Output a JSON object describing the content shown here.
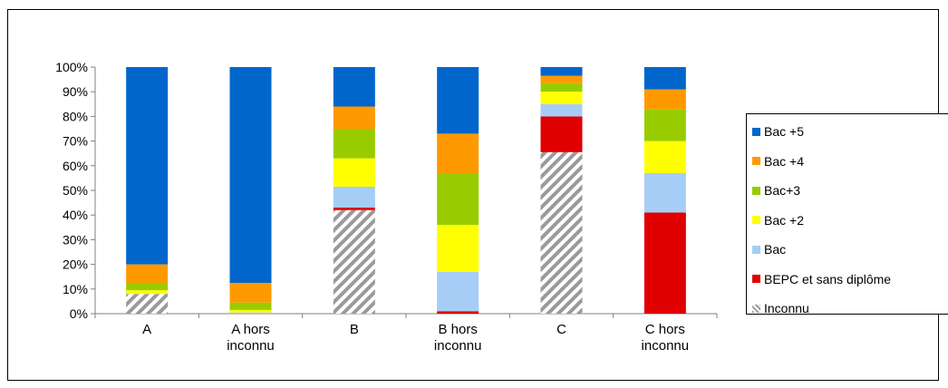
{
  "chart_data": {
    "type": "bar",
    "stacked": true,
    "percent": true,
    "categories": [
      [
        "A"
      ],
      [
        "A hors",
        "inconnu"
      ],
      [
        "B"
      ],
      [
        "B hors",
        "inconnu"
      ],
      [
        "C"
      ],
      [
        "C hors",
        "inconnu"
      ]
    ],
    "yticks": [
      "0%",
      "10%",
      "20%",
      "30%",
      "40%",
      "50%",
      "60%",
      "70%",
      "80%",
      "90%",
      "100%"
    ],
    "ylim": [
      0,
      100
    ],
    "legend_position": "right",
    "series": [
      {
        "name": "Inconnu",
        "color": "#9a9a9a",
        "pattern": "hatched",
        "values": [
          8,
          0,
          42,
          0,
          65.5,
          0
        ]
      },
      {
        "name": "BEPC et sans diplôme",
        "color": "#e00000",
        "values": [
          0,
          0,
          1,
          1,
          14.5,
          41
        ]
      },
      {
        "name": "Bac",
        "color": "#a6cdf5",
        "values": [
          0,
          0.5,
          8.5,
          16,
          5,
          16
        ]
      },
      {
        "name": "Bac +2",
        "color": "#ffff00",
        "values": [
          1.5,
          1,
          11.5,
          19,
          5,
          13
        ]
      },
      {
        "name": "Bac+3",
        "color": "#99cc00",
        "values": [
          3,
          3,
          12,
          21,
          3.5,
          13
        ]
      },
      {
        "name": "Bac +4",
        "color": "#ff9900",
        "values": [
          7.5,
          8,
          9,
          16,
          3,
          8
        ]
      },
      {
        "name": "Bac +5",
        "color": "#0066cc",
        "values": [
          80,
          87.5,
          16,
          27,
          3.5,
          9
        ]
      }
    ]
  }
}
